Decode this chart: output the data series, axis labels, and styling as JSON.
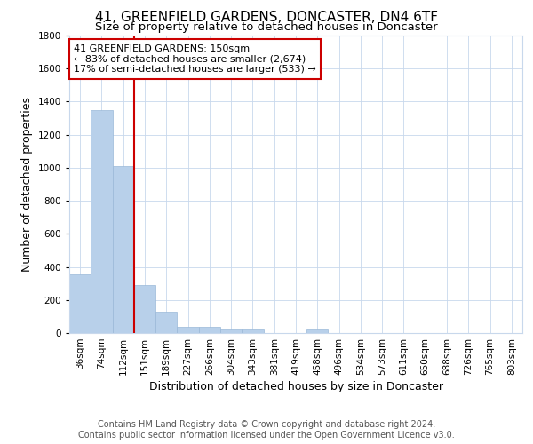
{
  "title1": "41, GREENFIELD GARDENS, DONCASTER, DN4 6TF",
  "title2": "Size of property relative to detached houses in Doncaster",
  "xlabel": "Distribution of detached houses by size in Doncaster",
  "ylabel": "Number of detached properties",
  "categories": [
    "36sqm",
    "74sqm",
    "112sqm",
    "151sqm",
    "189sqm",
    "227sqm",
    "266sqm",
    "304sqm",
    "343sqm",
    "381sqm",
    "419sqm",
    "458sqm",
    "496sqm",
    "534sqm",
    "573sqm",
    "611sqm",
    "650sqm",
    "688sqm",
    "726sqm",
    "765sqm",
    "803sqm"
  ],
  "bar_heights": [
    355,
    1350,
    1010,
    290,
    130,
    40,
    35,
    20,
    20,
    0,
    0,
    20,
    0,
    0,
    0,
    0,
    0,
    0,
    0,
    0,
    0
  ],
  "bar_color": "#b8d0ea",
  "bar_edge_color": "#9ab8d8",
  "property_line_x": 2.5,
  "annotation_line1": "41 GREENFIELD GARDENS: 150sqm",
  "annotation_line2": "← 83% of detached houses are smaller (2,674)",
  "annotation_line3": "17% of semi-detached houses are larger (533) →",
  "annotation_box_color": "#cc0000",
  "vline_color": "#cc0000",
  "ylim": [
    0,
    1800
  ],
  "yticks": [
    0,
    200,
    400,
    600,
    800,
    1000,
    1200,
    1400,
    1600,
    1800
  ],
  "footer1": "Contains HM Land Registry data © Crown copyright and database right 2024.",
  "footer2": "Contains public sector information licensed under the Open Government Licence v3.0.",
  "bg_color": "#ffffff",
  "grid_color": "#c8d8ec",
  "title1_fontsize": 11,
  "title2_fontsize": 9.5,
  "axis_label_fontsize": 9,
  "tick_fontsize": 7.5,
  "annotation_fontsize": 8,
  "footer_fontsize": 7
}
